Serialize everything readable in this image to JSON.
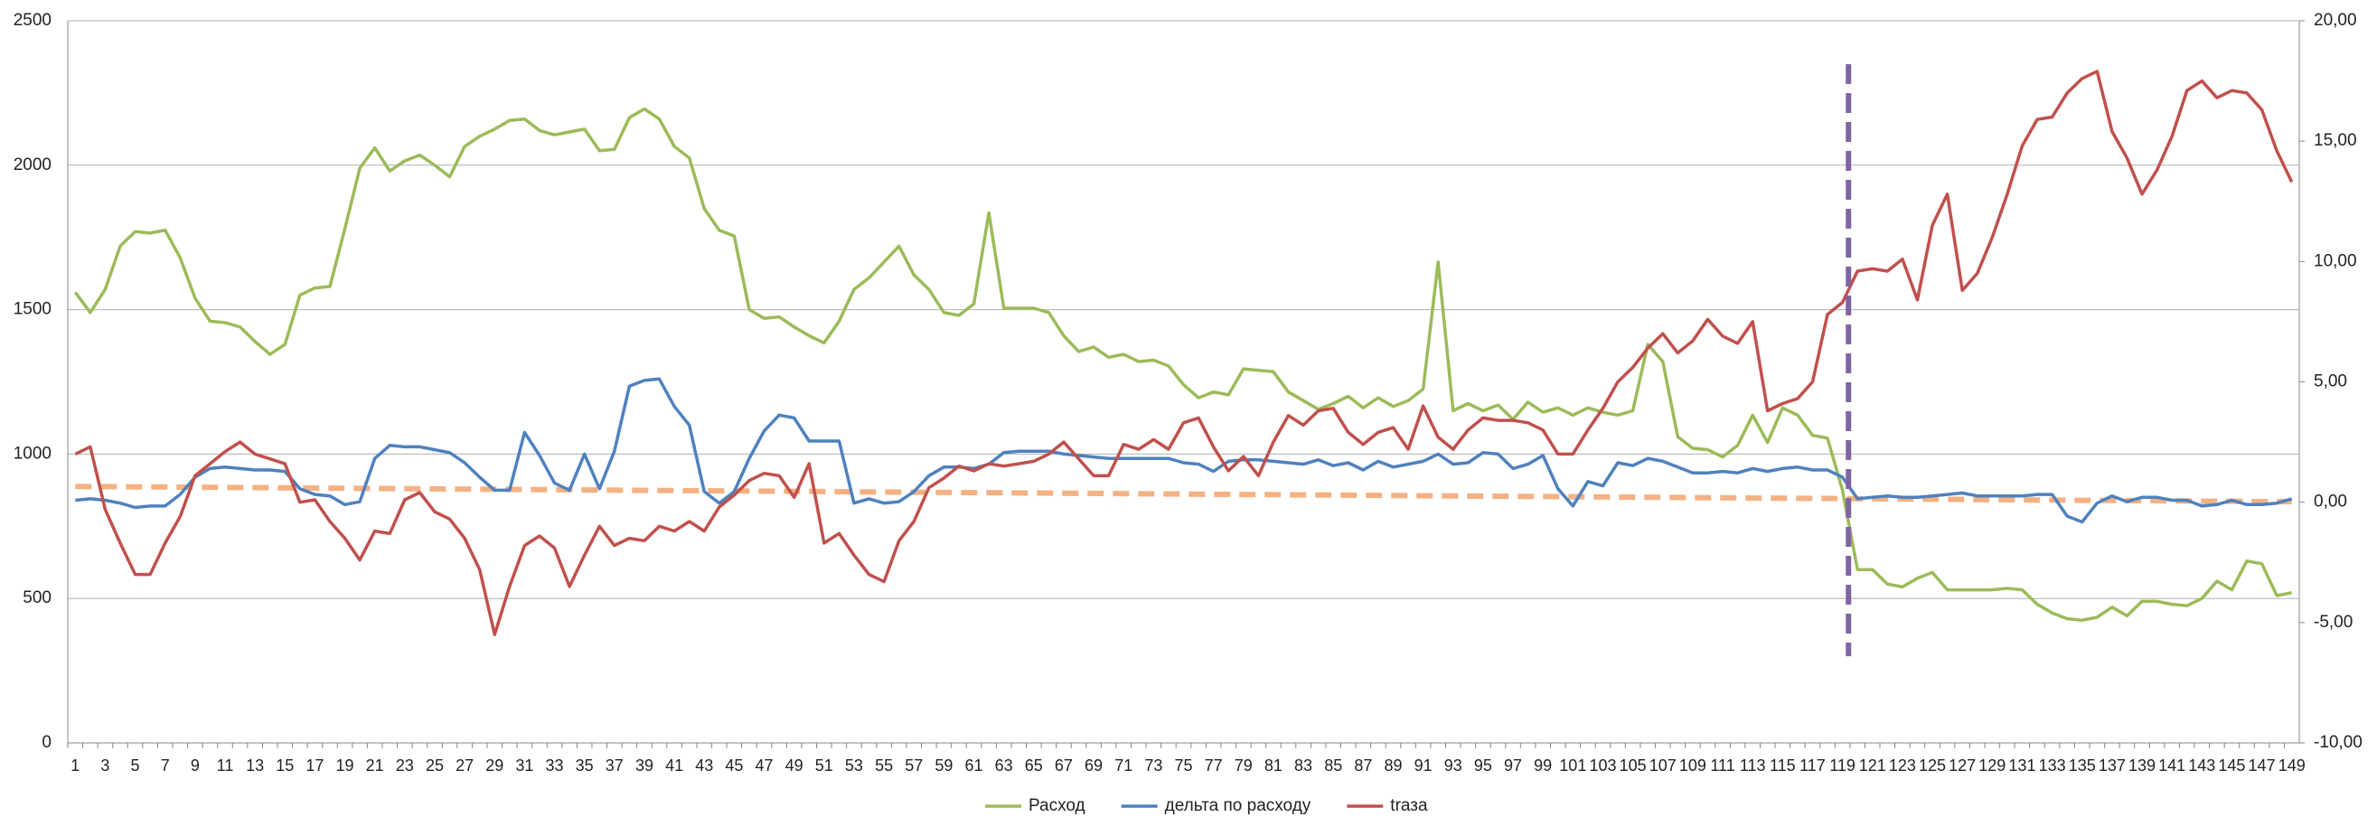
{
  "chart_data": {
    "type": "line",
    "categories": [
      1,
      null,
      3,
      null,
      5,
      null,
      7,
      null,
      9,
      null,
      11,
      null,
      13,
      null,
      15,
      null,
      17,
      null,
      19,
      null,
      21,
      null,
      23,
      null,
      25,
      null,
      27,
      null,
      29,
      null,
      31,
      null,
      33,
      null,
      35,
      null,
      37,
      null,
      39,
      null,
      41,
      null,
      43,
      null,
      45,
      null,
      47,
      null,
      49,
      null,
      51,
      null,
      53,
      null,
      55,
      null,
      57,
      null,
      59,
      null,
      61,
      null,
      63,
      null,
      65,
      null,
      67,
      null,
      69,
      null,
      71,
      null,
      73,
      null,
      75,
      null,
      77,
      null,
      79,
      null,
      81,
      null,
      83,
      null,
      85,
      null,
      87,
      null,
      89,
      null,
      91,
      null,
      93,
      null,
      95,
      null,
      97,
      null,
      99,
      null,
      101,
      null,
      103,
      null,
      105,
      null,
      107,
      null,
      109,
      null,
      111,
      null,
      113,
      null,
      115,
      null,
      117,
      null,
      119,
      null,
      121,
      null,
      123,
      null,
      125,
      null,
      127,
      null,
      129,
      null,
      131,
      null,
      133,
      null,
      135,
      null,
      137,
      null,
      139,
      null,
      141,
      null,
      143,
      null,
      145,
      null,
      147,
      null,
      149
    ],
    "series": [
      {
        "name": "Расход",
        "color": "#9bbb59",
        "axis": "y",
        "values": [
          1560,
          1490,
          1570,
          1720,
          1770,
          1765,
          1775,
          1680,
          1540,
          1460,
          1455,
          1440,
          1390,
          1345,
          1380,
          1550,
          1575,
          1580,
          1780,
          1990,
          2060,
          1980,
          2015,
          2035,
          2000,
          1960,
          2065,
          2100,
          2125,
          2155,
          2160,
          2120,
          2105,
          2115,
          2125,
          2050,
          2055,
          2165,
          2195,
          2160,
          2065,
          2025,
          1850,
          1775,
          1755,
          1500,
          1470,
          1475,
          1440,
          1410,
          1385,
          1460,
          1570,
          1610,
          1665,
          1720,
          1620,
          1570,
          1490,
          1480,
          1520,
          1835,
          1505,
          1505,
          1505,
          1490,
          1410,
          1355,
          1370,
          1335,
          1345,
          1320,
          1325,
          1305,
          1240,
          1195,
          1215,
          1205,
          1295,
          1290,
          1285,
          1215,
          1185,
          1155,
          1175,
          1200,
          1160,
          1195,
          1165,
          1185,
          1225,
          1665,
          1150,
          1175,
          1150,
          1170,
          1120,
          1180,
          1145,
          1160,
          1135,
          1160,
          1145,
          1135,
          1150,
          1380,
          1320,
          1060,
          1020,
          1015,
          990,
          1030,
          1135,
          1040,
          1160,
          1135,
          1065,
          1055,
          875,
          600,
          600,
          550,
          540,
          570,
          590,
          530,
          530,
          530,
          530,
          535,
          530,
          480,
          450,
          430,
          425,
          435,
          470,
          440,
          490,
          490,
          480,
          475,
          500,
          560,
          530,
          630,
          620,
          510,
          520
        ]
      },
      {
        "name": "дельта по расходу",
        "color": "#4f81bd",
        "axis": "y",
        "values": [
          840,
          845,
          840,
          830,
          815,
          820,
          820,
          860,
          920,
          950,
          955,
          950,
          945,
          945,
          940,
          880,
          860,
          855,
          825,
          835,
          985,
          1030,
          1025,
          1025,
          1015,
          1005,
          970,
          920,
          875,
          875,
          1075,
          995,
          900,
          875,
          1000,
          880,
          1010,
          1235,
          1255,
          1260,
          1165,
          1100,
          870,
          830,
          870,
          985,
          1080,
          1135,
          1125,
          1045,
          1045,
          1045,
          830,
          845,
          830,
          835,
          870,
          925,
          955,
          955,
          950,
          965,
          1005,
          1010,
          1010,
          1010,
          1000,
          995,
          990,
          985,
          985,
          985,
          985,
          985,
          970,
          965,
          940,
          975,
          980,
          980,
          975,
          970,
          965,
          980,
          960,
          970,
          945,
          975,
          955,
          965,
          975,
          1000,
          965,
          970,
          1005,
          1000,
          950,
          965,
          995,
          880,
          820,
          905,
          890,
          970,
          960,
          985,
          975,
          955,
          935,
          935,
          940,
          935,
          950,
          940,
          950,
          955,
          945,
          945,
          920,
          845,
          850,
          855,
          850,
          850,
          855,
          860,
          865,
          855,
          855,
          855,
          855,
          860,
          860,
          785,
          765,
          830,
          855,
          835,
          850,
          850,
          840,
          840,
          820,
          825,
          840,
          825,
          825,
          830,
          845
        ]
      },
      {
        "name": "trаза",
        "color": "#c0504d",
        "axis": "y2",
        "values": [
          2.0,
          2.3,
          -0.3,
          -1.7,
          -3.0,
          -3.0,
          -1.7,
          -0.6,
          1.1,
          1.6,
          2.1,
          2.5,
          2.0,
          1.8,
          1.6,
          0.0,
          0.1,
          -0.8,
          -1.5,
          -2.4,
          -1.2,
          -1.3,
          0.1,
          0.4,
          -0.4,
          -0.7,
          -1.5,
          -2.8,
          -5.5,
          -3.5,
          -1.8,
          -1.4,
          -1.9,
          -3.5,
          -2.2,
          -1.0,
          -1.8,
          -1.5,
          -1.6,
          -1.0,
          -1.2,
          -0.8,
          -1.2,
          -0.2,
          0.3,
          0.9,
          1.2,
          1.1,
          0.2,
          1.6,
          -1.7,
          -1.3,
          -2.2,
          -3.0,
          -3.3,
          -1.6,
          -0.8,
          0.6,
          1.0,
          1.5,
          1.3,
          1.6,
          1.5,
          1.6,
          1.7,
          2.0,
          2.5,
          1.8,
          1.1,
          1.1,
          2.4,
          2.2,
          2.6,
          2.2,
          3.3,
          3.5,
          2.3,
          1.3,
          1.9,
          1.1,
          2.5,
          3.6,
          3.2,
          3.8,
          3.9,
          2.9,
          2.4,
          2.9,
          3.1,
          2.2,
          4.0,
          2.7,
          2.2,
          3.0,
          3.5,
          3.4,
          3.4,
          3.3,
          3.0,
          2.0,
          2.0,
          3.0,
          3.9,
          5.0,
          5.6,
          6.4,
          7.0,
          6.2,
          6.7,
          7.6,
          6.9,
          6.6,
          7.5,
          3.8,
          4.1,
          4.3,
          5.0,
          7.8,
          8.3,
          9.6,
          9.7,
          9.6,
          10.1,
          8.4,
          11.5,
          12.8,
          8.8,
          9.5,
          11.0,
          12.8,
          14.8,
          15.9,
          16.0,
          17.0,
          17.6,
          17.9,
          15.4,
          14.3,
          12.8,
          13.8,
          15.2,
          17.1,
          17.5,
          16.8,
          17.1,
          17.0,
          16.3,
          14.6,
          13.3
        ]
      }
    ],
    "trendline": {
      "color": "#f4b183",
      "values": [
        888,
        835
      ]
    },
    "marker": {
      "x": 119.4,
      "ylim": [
        300,
        2350
      ],
      "color": "#8064a2"
    },
    "ylim": [
      0,
      2500
    ],
    "yticks": [
      0,
      500,
      1000,
      1500,
      2000,
      2500
    ],
    "y2lim": [
      -10,
      20
    ],
    "y2ticks": [
      {
        "value": -10,
        "label": "-10,00"
      },
      {
        "value": -5,
        "label": "-5,00"
      },
      {
        "value": 0,
        "label": "0,00"
      },
      {
        "value": 5,
        "label": "5,00"
      },
      {
        "value": 10,
        "label": "10,00"
      },
      {
        "value": 15,
        "label": "15,00"
      },
      {
        "value": 20,
        "label": "20,00"
      }
    ],
    "grid": true,
    "legend": "bottom"
  }
}
